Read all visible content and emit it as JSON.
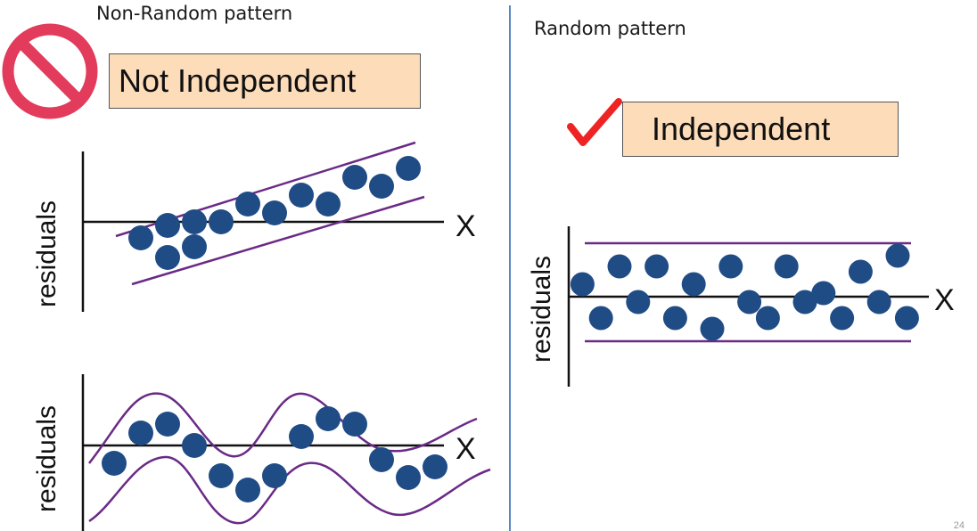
{
  "colors": {
    "point": "#204c86",
    "band": "#6a2a86",
    "axis": "#111111",
    "divider": "#5b86c0",
    "no_sign": "#e23b5c",
    "check": "#ee2424",
    "verdict_fill": "#fcdcb9"
  },
  "icons": {
    "prohibited": "prohibited-icon",
    "check": "checkmark-icon"
  },
  "left": {
    "heading": "Non-Random pattern",
    "verdict": "Not Independent"
  },
  "right": {
    "heading": "Random pattern",
    "verdict": "Independent"
  },
  "page_number": "24",
  "chart_data": [
    {
      "type": "scatter",
      "pattern": "linear trend in residuals",
      "xlabel": "X",
      "ylabel": "residuals",
      "band": "two parallel upward-sloping lines",
      "points": [
        [
          1,
          -0.9
        ],
        [
          2,
          -0.2
        ],
        [
          2,
          -2.0
        ],
        [
          3,
          -1.4
        ],
        [
          3,
          0.0
        ],
        [
          4,
          0.0
        ],
        [
          5,
          1.0
        ],
        [
          6,
          0.5
        ],
        [
          7,
          1.5
        ],
        [
          8,
          1.0
        ],
        [
          9,
          2.5
        ],
        [
          10,
          2.0
        ],
        [
          11,
          3.0
        ]
      ]
    },
    {
      "type": "scatter",
      "pattern": "cyclical (wave) pattern in residuals",
      "xlabel": "X",
      "ylabel": "residuals",
      "band": "two wavy curves",
      "points": [
        [
          1,
          -1.0
        ],
        [
          2,
          0.7
        ],
        [
          3,
          1.2
        ],
        [
          4,
          0.0
        ],
        [
          5,
          -1.7
        ],
        [
          6,
          -2.5
        ],
        [
          7,
          -1.7
        ],
        [
          8,
          0.5
        ],
        [
          9,
          1.5
        ],
        [
          10,
          1.2
        ],
        [
          11,
          -0.8
        ],
        [
          12,
          -1.8
        ],
        [
          13,
          -1.2
        ]
      ]
    },
    {
      "type": "scatter",
      "pattern": "random scatter around zero",
      "xlabel": "X",
      "ylabel": "residuals",
      "band": "two horizontal lines",
      "points": [
        [
          0.5,
          0.7
        ],
        [
          1.5,
          -1.2
        ],
        [
          2.5,
          1.7
        ],
        [
          3.5,
          -0.3
        ],
        [
          4.5,
          1.7
        ],
        [
          5.5,
          -1.2
        ],
        [
          6.5,
          0.7
        ],
        [
          7.5,
          -1.8
        ],
        [
          8.5,
          1.7
        ],
        [
          9.5,
          -0.3
        ],
        [
          10.5,
          -1.2
        ],
        [
          11.5,
          1.7
        ],
        [
          12.5,
          -0.3
        ],
        [
          13.5,
          0.2
        ],
        [
          14.5,
          -1.2
        ],
        [
          15.5,
          1.4
        ],
        [
          16.5,
          -0.3
        ],
        [
          17.5,
          2.3
        ],
        [
          18.0,
          -1.2
        ]
      ]
    }
  ]
}
